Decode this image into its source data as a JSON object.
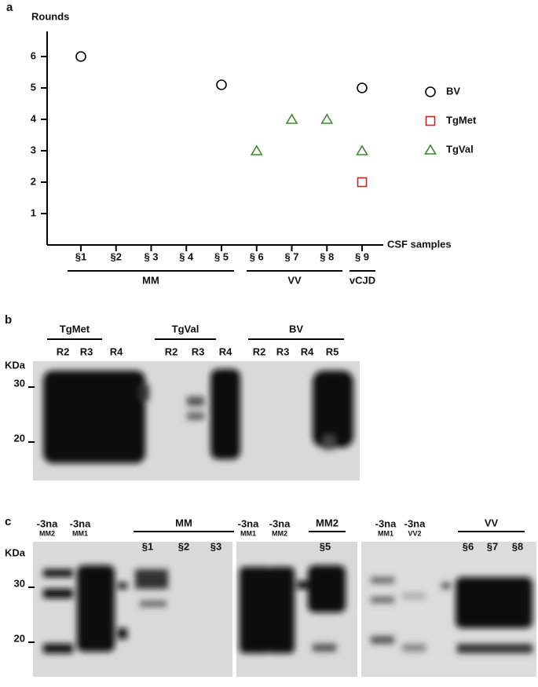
{
  "panel_a_label": "a",
  "chart_data": {
    "type": "scatter",
    "ylabel": "Rounds",
    "xlabel": "CSF samples",
    "categories": [
      "§1",
      "§2",
      "§ 3",
      "§ 4",
      "§ 5",
      "§ 6",
      "§ 7",
      "§ 8",
      "§ 9"
    ],
    "groups": [
      "MM",
      "VV",
      "vCJD"
    ],
    "ylim": [
      0,
      6.8
    ],
    "yticks": [
      1,
      2,
      3,
      4,
      5,
      6
    ],
    "series": [
      {
        "name": "BV",
        "color": "#000000",
        "marker": "circle",
        "values": [
          6,
          null,
          null,
          null,
          5.1,
          null,
          null,
          null,
          5
        ]
      },
      {
        "name": "TgMet",
        "color": "#cc2222",
        "marker": "square",
        "values": [
          null,
          null,
          null,
          null,
          null,
          null,
          null,
          null,
          2
        ]
      },
      {
        "name": "TgVal",
        "color": "#3a8a2a",
        "marker": "triangle",
        "values": [
          null,
          null,
          null,
          null,
          null,
          3,
          4,
          4,
          3
        ]
      }
    ]
  },
  "blot_b": {
    "label": "b",
    "kda": "KDa",
    "markers": [
      "30",
      "20"
    ],
    "groups": [
      {
        "name": "TgMet",
        "lanes": [
          "R2",
          "R3",
          "R4"
        ]
      },
      {
        "name": "TgVal",
        "lanes": [
          "R2",
          "R3",
          "R4"
        ]
      },
      {
        "name": "BV",
        "lanes": [
          "R2",
          "R3",
          "R4",
          "R5"
        ]
      }
    ]
  },
  "blot_c": {
    "label": "c",
    "kda": "KDa",
    "markers": [
      "30",
      "20"
    ],
    "controls": [
      {
        "name": "-3na",
        "sub": "MM2"
      },
      {
        "name": "-3na",
        "sub": "MM1"
      },
      {
        "name": "-3na",
        "sub": "MM1"
      },
      {
        "name": "-3na",
        "sub": "MM2"
      },
      {
        "name": "-3na",
        "sub": "MM1"
      },
      {
        "name": "-3na",
        "sub": "VV2"
      }
    ],
    "groups": [
      {
        "name": "MM",
        "lanes": [
          "§1",
          "§2",
          "§3"
        ]
      },
      {
        "name": "MM2",
        "lanes": [
          "§5"
        ]
      },
      {
        "name": "VV",
        "lanes": [
          "§6",
          "§7",
          "§8"
        ]
      }
    ]
  }
}
